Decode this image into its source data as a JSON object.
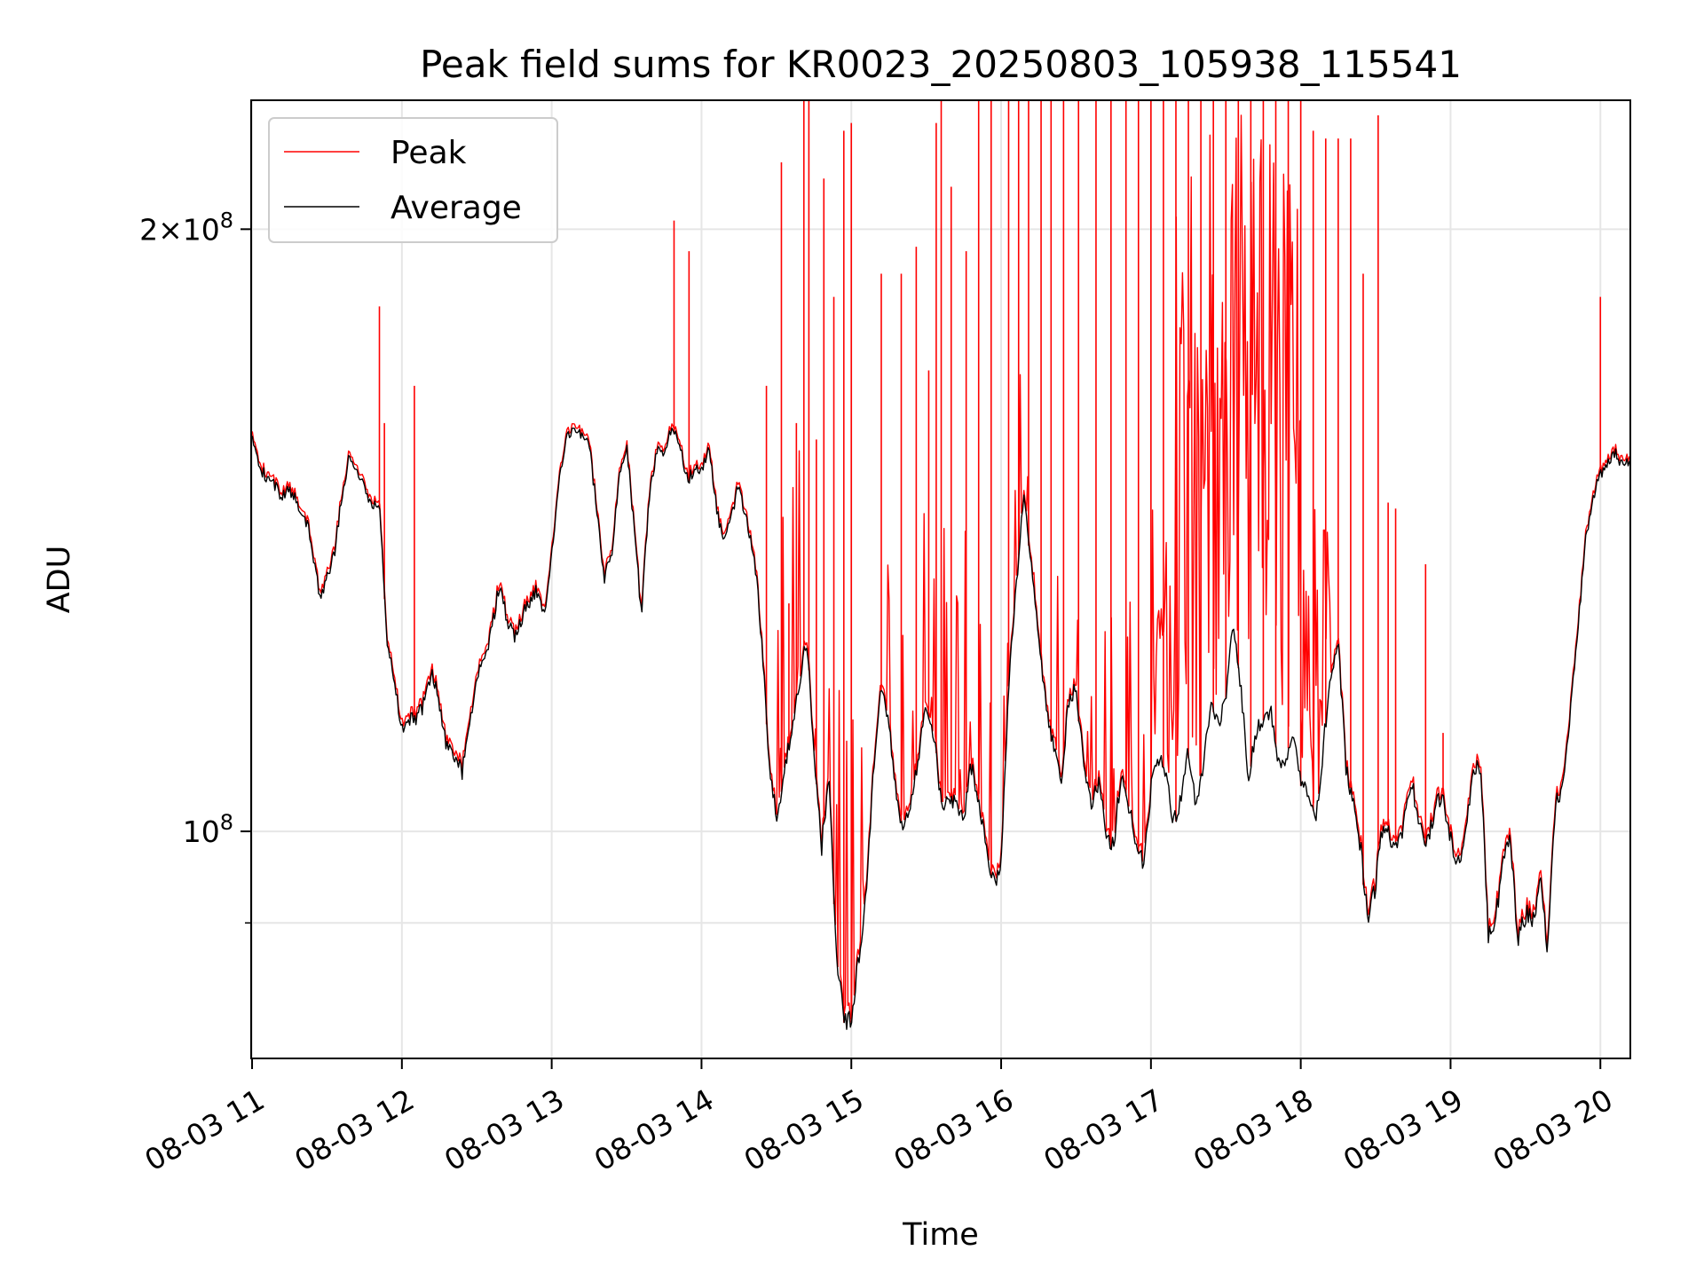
{
  "chart_data": {
    "type": "line",
    "title": "Peak field sums for KR0023_20250803_105938_115541",
    "xlabel": "Time",
    "ylabel": "ADU",
    "yscale": "log",
    "xlim": [
      "2025-08-03 10:59:38",
      "2025-08-03 20:12:00"
    ],
    "ylim": [
      77000000,
      232000000
    ],
    "grid": true,
    "legend_position": "upper-left",
    "x_tick_labels": [
      "08-03 11",
      "08-03 12",
      "08-03 13",
      "08-03 14",
      "08-03 15",
      "08-03 16",
      "08-03 17",
      "08-03 18",
      "08-03 19",
      "08-03 20"
    ],
    "x_tick_values": [
      "2025-08-03 11:00",
      "2025-08-03 12:00",
      "2025-08-03 13:00",
      "2025-08-03 14:00",
      "2025-08-03 15:00",
      "2025-08-03 16:00",
      "2025-08-03 17:00",
      "2025-08-03 18:00",
      "2025-08-03 19:00",
      "2025-08-03 20:00"
    ],
    "y_ticks": [
      {
        "value": 100000000,
        "base": "10",
        "exp": "8",
        "coef": ""
      },
      {
        "value": 200000000,
        "base": "10",
        "exp": "8",
        "coef": "2×"
      }
    ],
    "y_minor_ticks": [
      90000000
    ],
    "series": [
      {
        "name": "Average",
        "color": "#000000",
        "x": [
          "11:00",
          "11:03",
          "11:06",
          "11:09",
          "11:12",
          "11:15",
          "11:18",
          "11:21",
          "11:24",
          "11:27",
          "11:30",
          "11:33",
          "11:36",
          "11:39",
          "11:42",
          "11:45",
          "11:48",
          "11:51",
          "11:54",
          "11:57",
          "12:00",
          "12:03",
          "12:06",
          "12:09",
          "12:12",
          "12:15",
          "12:18",
          "12:21",
          "12:24",
          "12:27",
          "12:30",
          "12:33",
          "12:36",
          "12:39",
          "12:42",
          "12:45",
          "12:48",
          "12:51",
          "12:54",
          "12:57",
          "13:00",
          "13:03",
          "13:06",
          "13:09",
          "13:12",
          "13:15",
          "13:18",
          "13:21",
          "13:24",
          "13:27",
          "13:30",
          "13:33",
          "13:36",
          "13:39",
          "13:42",
          "13:45",
          "13:48",
          "13:51",
          "13:54",
          "13:57",
          "14:00",
          "14:03",
          "14:06",
          "14:09",
          "14:12",
          "14:15",
          "14:18",
          "14:21",
          "14:24",
          "14:27",
          "14:30",
          "14:33",
          "14:36",
          "14:39",
          "14:42",
          "14:45",
          "14:48",
          "14:51",
          "14:54",
          "14:57",
          "15:00",
          "15:03",
          "15:06",
          "15:09",
          "15:12",
          "15:15",
          "15:18",
          "15:21",
          "15:24",
          "15:27",
          "15:30",
          "15:33",
          "15:36",
          "15:39",
          "15:42",
          "15:45",
          "15:48",
          "15:51",
          "15:54",
          "15:57",
          "16:00",
          "16:03",
          "16:06",
          "16:09",
          "16:12",
          "16:15",
          "16:18",
          "16:21",
          "16:24",
          "16:27",
          "16:30",
          "16:33",
          "16:36",
          "16:39",
          "16:42",
          "16:45",
          "16:48",
          "16:51",
          "16:54",
          "16:57",
          "17:00",
          "17:03",
          "17:06",
          "17:09",
          "17:12",
          "17:15",
          "17:18",
          "17:21",
          "17:24",
          "17:27",
          "17:30",
          "17:33",
          "17:36",
          "17:39",
          "17:42",
          "17:45",
          "17:48",
          "17:51",
          "17:54",
          "17:57",
          "18:00",
          "18:03",
          "18:06",
          "18:09",
          "18:12",
          "18:15",
          "18:18",
          "18:21",
          "18:24",
          "18:27",
          "18:30",
          "18:33",
          "18:36",
          "18:39",
          "18:42",
          "18:45",
          "18:48",
          "18:51",
          "18:54",
          "18:57",
          "19:00",
          "19:03",
          "19:06",
          "19:09",
          "19:12",
          "19:15",
          "19:18",
          "19:21",
          "19:24",
          "19:27",
          "19:30",
          "19:33",
          "19:36",
          "19:39",
          "19:42",
          "19:45",
          "19:48",
          "19:51",
          "19:54",
          "19:57",
          "20:00",
          "20:03",
          "20:06",
          "20:09",
          "20:12"
        ],
        "values": [
          157,
          152,
          150,
          149,
          147,
          148,
          146,
          144,
          139,
          131,
          134,
          138,
          147,
          154,
          152,
          148,
          146,
          145,
          125,
          118,
          113,
          114,
          114,
          116,
          120,
          116,
          110,
          109,
          107,
          113,
          120,
          121,
          126,
          133,
          128,
          125,
          128,
          130,
          132,
          128,
          137,
          150,
          157,
          159,
          158,
          156,
          145,
          134,
          137,
          150,
          156,
          142,
          128,
          147,
          155,
          155,
          159,
          157,
          150,
          151,
          152,
          155,
          145,
          139,
          144,
          149,
          143,
          138,
          125,
          109,
          101,
          107,
          112,
          118,
          125,
          110,
          98,
          106,
          87,
          80,
          81,
          86,
          93,
          108,
          118,
          113,
          104,
          100,
          103,
          109,
          116,
          112,
          103,
          104,
          103,
          101,
          108,
          104,
          98,
          94,
          96,
          118,
          132,
          147,
          137,
          124,
          116,
          110,
          106,
          116,
          118,
          108,
          103,
          106,
          100,
          98,
          107,
          103,
          99,
          96,
          105,
          109,
          107,
          101,
          104,
          110,
          103,
          108,
          116,
          113,
          117,
          127,
          118,
          106,
          112,
          114,
          115,
          108,
          109,
          112,
          106,
          104,
          101,
          110,
          120,
          124,
          108,
          103,
          98,
          90,
          94,
          101,
          99,
          98,
          102,
          105,
          100,
          99,
          103,
          104,
          99,
          96,
          100,
          107,
          108,
          89,
          90,
          97,
          99,
          88,
          91,
          90,
          95,
          87,
          103,
          105,
          115,
          126,
          140,
          147,
          151,
          153,
          155,
          152,
          153
        ]
      },
      {
        "name": "Peak",
        "color": "#ff0000",
        "spikes": [
          {
            "t": "11:51",
            "v": 183
          },
          {
            "t": "11:53",
            "v": 160
          },
          {
            "t": "12:05",
            "v": 167
          },
          {
            "t": "13:49",
            "v": 202
          },
          {
            "t": "13:55",
            "v": 195
          },
          {
            "t": "14:26",
            "v": 167
          },
          {
            "t": "14:32",
            "v": 216
          },
          {
            "t": "14:35",
            "v": 130
          },
          {
            "t": "14:38",
            "v": 160
          },
          {
            "t": "14:41",
            "v": 232
          },
          {
            "t": "14:43",
            "v": 232
          },
          {
            "t": "14:46",
            "v": 157
          },
          {
            "t": "14:49",
            "v": 212
          },
          {
            "t": "14:53",
            "v": 185
          },
          {
            "t": "14:57",
            "v": 224
          },
          {
            "t": "15:00",
            "v": 226
          },
          {
            "t": "15:12",
            "v": 190
          },
          {
            "t": "15:20",
            "v": 190
          },
          {
            "t": "15:26",
            "v": 196
          },
          {
            "t": "15:31",
            "v": 170
          },
          {
            "t": "15:34",
            "v": 226
          },
          {
            "t": "15:36",
            "v": 235
          },
          {
            "t": "15:40",
            "v": 210
          },
          {
            "t": "15:46",
            "v": 195
          },
          {
            "t": "15:51",
            "v": 233
          },
          {
            "t": "15:56",
            "v": 233
          },
          {
            "t": "16:03",
            "v": 233
          },
          {
            "t": "16:07",
            "v": 233
          },
          {
            "t": "16:11",
            "v": 233
          },
          {
            "t": "16:16",
            "v": 233
          },
          {
            "t": "16:20",
            "v": 233
          },
          {
            "t": "16:25",
            "v": 233
          },
          {
            "t": "16:31",
            "v": 233
          },
          {
            "t": "16:38",
            "v": 233
          },
          {
            "t": "16:44",
            "v": 233
          },
          {
            "t": "16:50",
            "v": 233
          },
          {
            "t": "16:55",
            "v": 233
          },
          {
            "t": "17:00",
            "v": 233
          },
          {
            "t": "17:05",
            "v": 233
          },
          {
            "t": "17:10",
            "v": 233
          },
          {
            "t": "17:15",
            "v": 233
          },
          {
            "t": "17:20",
            "v": 233
          },
          {
            "t": "17:25",
            "v": 233
          },
          {
            "t": "17:30",
            "v": 233
          },
          {
            "t": "17:35",
            "v": 233
          },
          {
            "t": "17:40",
            "v": 233
          },
          {
            "t": "17:45",
            "v": 233
          },
          {
            "t": "17:50",
            "v": 233
          },
          {
            "t": "17:55",
            "v": 233
          },
          {
            "t": "18:00",
            "v": 233
          },
          {
            "t": "18:05",
            "v": 224
          },
          {
            "t": "18:10",
            "v": 222
          },
          {
            "t": "18:15",
            "v": 222
          },
          {
            "t": "18:20",
            "v": 222
          },
          {
            "t": "18:25",
            "v": 190
          },
          {
            "t": "18:31",
            "v": 228
          },
          {
            "t": "18:35",
            "v": 146
          },
          {
            "t": "18:38",
            "v": 145
          },
          {
            "t": "18:50",
            "v": 136
          },
          {
            "t": "18:57",
            "v": 112
          },
          {
            "t": "20:00",
            "v": 185
          }
        ]
      }
    ]
  }
}
